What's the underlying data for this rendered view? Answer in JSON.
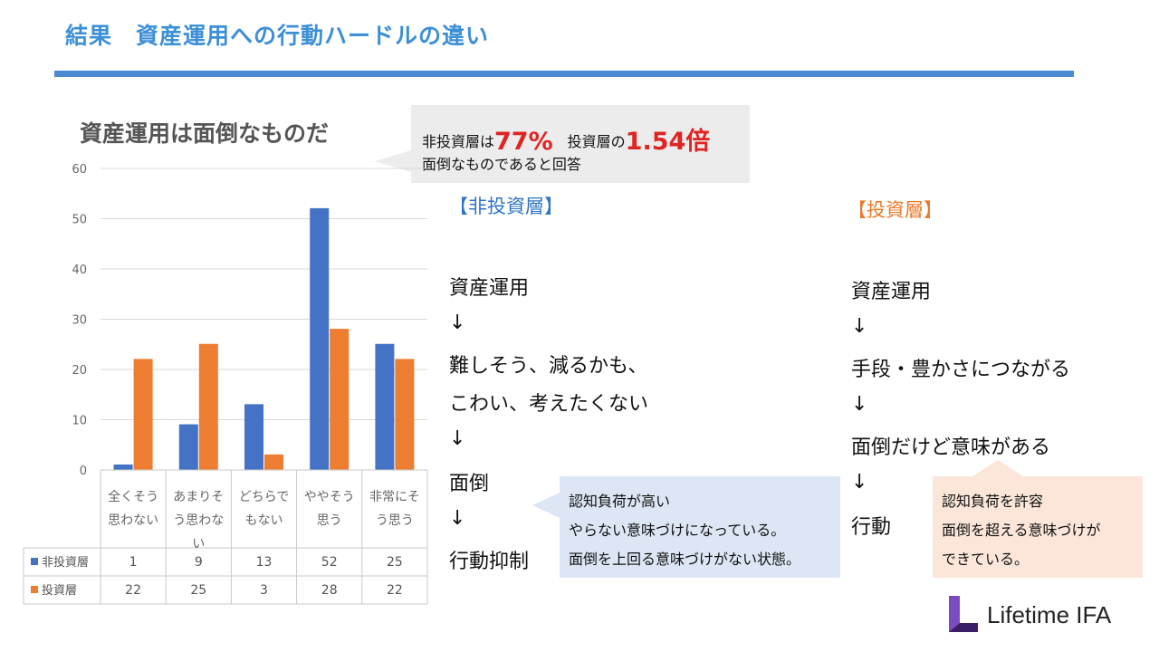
{
  "slide": {
    "title": "結果　資産運用への行動ハードルの違い",
    "chart_title": "資産運用は面倒なものだ",
    "callout_top": {
      "text_a": "非投資層は",
      "highlight_a": "77%",
      "text_b": "　投資層の",
      "highlight_b": "1.54倍",
      "line2": "面倒なものであると回答"
    },
    "non_investor": {
      "heading": "【非投資層】",
      "flow": [
        "資産運用",
        "↓",
        "難しそう、減るかも、",
        "こわい、考えたくない",
        "↓",
        "面倒",
        "↓",
        "行動抑制"
      ],
      "note": [
        "認知負荷が高い",
        "やらない意味づけになっている。",
        "面倒を上回る意味づけがない状態。"
      ]
    },
    "investor": {
      "heading": "【投資層】",
      "flow": [
        "資産運用",
        "↓",
        "手段・豊かさにつながる",
        "↓",
        "面倒だけど意味がある",
        "↓",
        "行動"
      ],
      "note": [
        "認知負荷を許容",
        "面倒を超える意味づけが",
        "できている。"
      ]
    },
    "logo_text": "Lifetime IFA",
    "colors": {
      "title": "#3d8fd6",
      "bar_rule": "#4a8ad2",
      "series_non_investor": "#4472c4",
      "series_investor": "#ed7d31",
      "highlight": "#e02424"
    }
  },
  "chart_data": {
    "type": "bar",
    "categories": [
      [
        "全くそう",
        "思わない"
      ],
      [
        "あまりそ",
        "う思わな",
        "い"
      ],
      [
        "どちらで",
        "もない"
      ],
      [
        "ややそう",
        "思う"
      ],
      [
        "非常にそ",
        "う思う"
      ]
    ],
    "series": [
      {
        "name": "非投資層",
        "values": [
          1,
          9,
          13,
          52,
          25
        ],
        "color": "#4472c4"
      },
      {
        "name": "投資層",
        "values": [
          22,
          25,
          3,
          28,
          22
        ],
        "color": "#ed7d31"
      }
    ],
    "y_ticks": [
      "0",
      "10",
      "20",
      "30",
      "40",
      "50",
      "60"
    ],
    "ylim": [
      0,
      60
    ],
    "grid": true,
    "legend": "data-table"
  }
}
